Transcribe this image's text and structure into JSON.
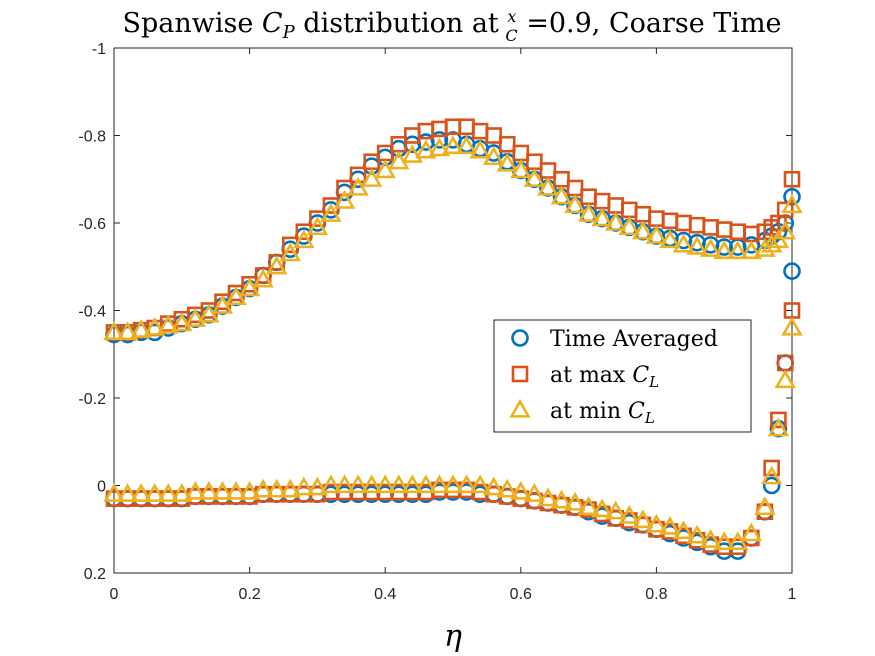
{
  "chart_data": {
    "type": "scatter",
    "title": "Spanwise C_P distribution at x/C =0.9, Coarse Time",
    "title_parts": {
      "prefix": "Spanwise ",
      "symbol": "C",
      "symbol_sub": "P",
      "middle": " distribution at ",
      "frac_num": "x",
      "frac_den": "C",
      "suffix": " =0.9, Coarse Time"
    },
    "xlabel": "η",
    "ylabel": "",
    "xlim": [
      0,
      1
    ],
    "ylim": [
      0.2,
      -1
    ],
    "y_reversed": true,
    "xticks": [
      0,
      0.2,
      0.4,
      0.6,
      0.8,
      1
    ],
    "xtick_labels": [
      "0",
      "0.2",
      "0.4",
      "0.6",
      "0.8",
      "1"
    ],
    "yticks": [
      -1,
      -0.8,
      -0.6,
      -0.4,
      -0.2,
      0,
      0.2
    ],
    "ytick_labels": [
      "-1",
      "-0.8",
      "-0.6",
      "-0.4",
      "-0.2",
      "0",
      "0.2"
    ],
    "grid": false,
    "legend_position": "center-right",
    "legend_entries": [
      {
        "text": "Time Averaged",
        "math": "",
        "sub": ""
      },
      {
        "text": "at max ",
        "math": "C",
        "sub": "L"
      },
      {
        "text": "at min ",
        "math": "C",
        "sub": "L"
      }
    ],
    "series": [
      {
        "marker": "circle",
        "color": "#0072BD",
        "upper": {
          "x": [
            0,
            0.02,
            0.04,
            0.06,
            0.08,
            0.1,
            0.12,
            0.14,
            0.16,
            0.18,
            0.2,
            0.22,
            0.24,
            0.26,
            0.28,
            0.3,
            0.32,
            0.34,
            0.36,
            0.38,
            0.4,
            0.42,
            0.44,
            0.46,
            0.48,
            0.5,
            0.52,
            0.54,
            0.56,
            0.58,
            0.6,
            0.62,
            0.64,
            0.66,
            0.68,
            0.7,
            0.72,
            0.74,
            0.76,
            0.78,
            0.8,
            0.82,
            0.84,
            0.86,
            0.88,
            0.9,
            0.92,
            0.94,
            0.96,
            0.97,
            0.98,
            0.99,
            1.0
          ],
          "y": [
            -0.345,
            -0.345,
            -0.35,
            -0.35,
            -0.36,
            -0.37,
            -0.38,
            -0.39,
            -0.41,
            -0.43,
            -0.45,
            -0.48,
            -0.51,
            -0.54,
            -0.57,
            -0.6,
            -0.63,
            -0.67,
            -0.7,
            -0.73,
            -0.75,
            -0.77,
            -0.78,
            -0.785,
            -0.79,
            -0.79,
            -0.78,
            -0.77,
            -0.76,
            -0.74,
            -0.72,
            -0.7,
            -0.68,
            -0.66,
            -0.64,
            -0.62,
            -0.61,
            -0.6,
            -0.59,
            -0.58,
            -0.57,
            -0.565,
            -0.56,
            -0.555,
            -0.55,
            -0.545,
            -0.545,
            -0.55,
            -0.56,
            -0.57,
            -0.58,
            -0.6,
            -0.66
          ]
        },
        "lower": {
          "x": [
            0,
            0.02,
            0.04,
            0.06,
            0.08,
            0.1,
            0.12,
            0.14,
            0.16,
            0.18,
            0.2,
            0.22,
            0.24,
            0.26,
            0.28,
            0.3,
            0.32,
            0.34,
            0.36,
            0.38,
            0.4,
            0.42,
            0.44,
            0.46,
            0.48,
            0.5,
            0.52,
            0.54,
            0.56,
            0.58,
            0.6,
            0.62,
            0.64,
            0.66,
            0.68,
            0.7,
            0.72,
            0.74,
            0.76,
            0.78,
            0.8,
            0.82,
            0.84,
            0.86,
            0.88,
            0.9,
            0.92,
            0.94,
            0.96,
            0.97,
            0.98,
            0.99,
            1.0
          ],
          "y": [
            0.03,
            0.03,
            0.03,
            0.03,
            0.03,
            0.03,
            0.025,
            0.025,
            0.025,
            0.025,
            0.025,
            0.02,
            0.02,
            0.02,
            0.02,
            0.02,
            0.02,
            0.02,
            0.02,
            0.02,
            0.02,
            0.02,
            0.02,
            0.02,
            0.015,
            0.015,
            0.015,
            0.02,
            0.02,
            0.025,
            0.03,
            0.035,
            0.04,
            0.045,
            0.05,
            0.06,
            0.07,
            0.075,
            0.085,
            0.09,
            0.1,
            0.11,
            0.12,
            0.13,
            0.14,
            0.15,
            0.15,
            0.12,
            0.06,
            0.0,
            -0.13,
            -0.28,
            -0.49
          ]
        }
      },
      {
        "marker": "square",
        "color": "#D95319",
        "upper": {
          "x": [
            0,
            0.02,
            0.04,
            0.06,
            0.08,
            0.1,
            0.12,
            0.14,
            0.16,
            0.18,
            0.2,
            0.22,
            0.24,
            0.26,
            0.28,
            0.3,
            0.32,
            0.34,
            0.36,
            0.38,
            0.4,
            0.42,
            0.44,
            0.46,
            0.48,
            0.5,
            0.52,
            0.54,
            0.56,
            0.58,
            0.6,
            0.62,
            0.64,
            0.66,
            0.68,
            0.7,
            0.72,
            0.74,
            0.76,
            0.78,
            0.8,
            0.82,
            0.84,
            0.86,
            0.88,
            0.9,
            0.92,
            0.94,
            0.96,
            0.97,
            0.98,
            0.99,
            1.0
          ],
          "y": [
            -0.35,
            -0.35,
            -0.355,
            -0.36,
            -0.37,
            -0.38,
            -0.39,
            -0.4,
            -0.42,
            -0.44,
            -0.46,
            -0.48,
            -0.51,
            -0.55,
            -0.58,
            -0.61,
            -0.64,
            -0.68,
            -0.71,
            -0.74,
            -0.76,
            -0.78,
            -0.8,
            -0.81,
            -0.815,
            -0.82,
            -0.82,
            -0.81,
            -0.8,
            -0.78,
            -0.76,
            -0.74,
            -0.72,
            -0.7,
            -0.68,
            -0.66,
            -0.65,
            -0.64,
            -0.63,
            -0.62,
            -0.61,
            -0.605,
            -0.6,
            -0.595,
            -0.59,
            -0.585,
            -0.58,
            -0.575,
            -0.58,
            -0.59,
            -0.6,
            -0.63,
            -0.7
          ]
        },
        "lower": {
          "x": [
            0,
            0.02,
            0.04,
            0.06,
            0.08,
            0.1,
            0.12,
            0.14,
            0.16,
            0.18,
            0.2,
            0.22,
            0.24,
            0.26,
            0.28,
            0.3,
            0.32,
            0.34,
            0.36,
            0.38,
            0.4,
            0.42,
            0.44,
            0.46,
            0.48,
            0.5,
            0.52,
            0.54,
            0.56,
            0.58,
            0.6,
            0.62,
            0.64,
            0.66,
            0.68,
            0.7,
            0.72,
            0.74,
            0.76,
            0.78,
            0.8,
            0.82,
            0.84,
            0.86,
            0.88,
            0.9,
            0.92,
            0.94,
            0.96,
            0.97,
            0.98,
            0.99,
            1.0
          ],
          "y": [
            0.03,
            0.03,
            0.03,
            0.03,
            0.03,
            0.03,
            0.025,
            0.025,
            0.025,
            0.025,
            0.025,
            0.02,
            0.02,
            0.02,
            0.02,
            0.02,
            0.015,
            0.015,
            0.015,
            0.015,
            0.015,
            0.015,
            0.015,
            0.015,
            0.01,
            0.01,
            0.01,
            0.015,
            0.02,
            0.025,
            0.03,
            0.035,
            0.04,
            0.045,
            0.05,
            0.055,
            0.065,
            0.075,
            0.08,
            0.09,
            0.1,
            0.105,
            0.115,
            0.125,
            0.135,
            0.14,
            0.14,
            0.12,
            0.06,
            -0.04,
            -0.15,
            -0.28,
            -0.4
          ]
        }
      },
      {
        "marker": "triangle",
        "color": "#EDB120",
        "upper": {
          "x": [
            0,
            0.02,
            0.04,
            0.06,
            0.08,
            0.1,
            0.12,
            0.14,
            0.16,
            0.18,
            0.2,
            0.22,
            0.24,
            0.26,
            0.28,
            0.3,
            0.32,
            0.34,
            0.36,
            0.38,
            0.4,
            0.42,
            0.44,
            0.46,
            0.48,
            0.5,
            0.52,
            0.54,
            0.56,
            0.58,
            0.6,
            0.62,
            0.64,
            0.66,
            0.68,
            0.7,
            0.72,
            0.74,
            0.76,
            0.78,
            0.8,
            0.82,
            0.84,
            0.86,
            0.88,
            0.9,
            0.92,
            0.94,
            0.96,
            0.97,
            0.98,
            0.99,
            1.0
          ],
          "y": [
            -0.35,
            -0.35,
            -0.355,
            -0.36,
            -0.365,
            -0.37,
            -0.38,
            -0.39,
            -0.41,
            -0.43,
            -0.45,
            -0.47,
            -0.5,
            -0.53,
            -0.56,
            -0.59,
            -0.62,
            -0.65,
            -0.68,
            -0.7,
            -0.72,
            -0.74,
            -0.755,
            -0.765,
            -0.77,
            -0.775,
            -0.775,
            -0.765,
            -0.75,
            -0.735,
            -0.72,
            -0.7,
            -0.68,
            -0.66,
            -0.64,
            -0.62,
            -0.61,
            -0.6,
            -0.59,
            -0.58,
            -0.57,
            -0.56,
            -0.55,
            -0.545,
            -0.54,
            -0.535,
            -0.535,
            -0.535,
            -0.54,
            -0.55,
            -0.56,
            -0.58,
            -0.64
          ]
        },
        "lower": {
          "x": [
            0,
            0.02,
            0.04,
            0.06,
            0.08,
            0.1,
            0.12,
            0.14,
            0.16,
            0.18,
            0.2,
            0.22,
            0.24,
            0.26,
            0.28,
            0.3,
            0.32,
            0.34,
            0.36,
            0.38,
            0.4,
            0.42,
            0.44,
            0.46,
            0.48,
            0.5,
            0.52,
            0.54,
            0.56,
            0.58,
            0.6,
            0.62,
            0.64,
            0.66,
            0.68,
            0.7,
            0.72,
            0.74,
            0.76,
            0.78,
            0.8,
            0.82,
            0.84,
            0.86,
            0.88,
            0.9,
            0.92,
            0.94,
            0.96,
            0.97,
            0.98,
            0.99,
            1.0
          ],
          "y": [
            0.02,
            0.02,
            0.02,
            0.02,
            0.02,
            0.02,
            0.015,
            0.015,
            0.015,
            0.015,
            0.015,
            0.01,
            0.01,
            0.01,
            0.005,
            0.005,
            0.0,
            0.0,
            0.0,
            0.0,
            0.0,
            0.0,
            0.0,
            0.0,
            0.0,
            0.0,
            0.0,
            0.0,
            0.005,
            0.01,
            0.015,
            0.02,
            0.03,
            0.035,
            0.04,
            0.05,
            0.055,
            0.06,
            0.07,
            0.08,
            0.09,
            0.095,
            0.105,
            0.115,
            0.125,
            0.13,
            0.13,
            0.11,
            0.05,
            -0.02,
            -0.13,
            -0.24,
            -0.36
          ]
        }
      }
    ]
  }
}
